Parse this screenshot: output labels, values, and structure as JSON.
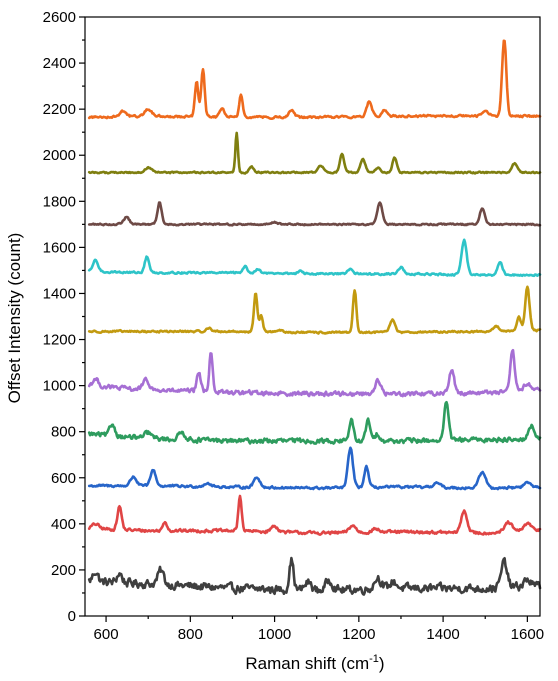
{
  "chart_data": {
    "type": "line",
    "xlabel": "Raman shift (cm",
    "xlabel_sup": "-1",
    "xlabel_end": ")",
    "ylabel": "Offset Intensity (count)",
    "xlim": [
      550,
      1630
    ],
    "ylim": [
      0,
      2600
    ],
    "x_ticks": [
      600,
      800,
      1000,
      1200,
      1400,
      1600
    ],
    "y_ticks": [
      0,
      200,
      400,
      600,
      800,
      1000,
      1200,
      1400,
      1600,
      1800,
      2000,
      2200,
      2400,
      2600
    ],
    "grid": false,
    "legend": "none",
    "series": [
      {
        "color": "#3f3f3f",
        "baseline": [
          [
            560,
            150
          ],
          [
            700,
            140
          ],
          [
            900,
            120
          ],
          [
            1100,
            110
          ],
          [
            1300,
            120
          ],
          [
            1500,
            120
          ],
          [
            1630,
            130
          ]
        ],
        "noise": 28,
        "peaks": [
          [
            575,
            45,
            6
          ],
          [
            632,
            40,
            6
          ],
          [
            730,
            60,
            7
          ],
          [
            1040,
            130,
            5
          ],
          [
            1080,
            35,
            8
          ],
          [
            1130,
            45,
            8
          ],
          [
            1245,
            50,
            8
          ],
          [
            1282,
            30,
            8
          ],
          [
            1545,
            110,
            7
          ],
          [
            1600,
            30,
            8
          ]
        ]
      },
      {
        "color": "#e04545",
        "baseline": [
          [
            560,
            380
          ],
          [
            700,
            370
          ],
          [
            900,
            370
          ],
          [
            1100,
            360
          ],
          [
            1300,
            365
          ],
          [
            1500,
            360
          ],
          [
            1630,
            375
          ]
        ],
        "noise": 10,
        "peaks": [
          [
            575,
            20,
            8
          ],
          [
            632,
            100,
            5
          ],
          [
            740,
            40,
            5
          ],
          [
            918,
            150,
            4
          ],
          [
            1000,
            25,
            8
          ],
          [
            1185,
            30,
            8
          ],
          [
            1240,
            15,
            8
          ],
          [
            1450,
            95,
            7
          ],
          [
            1555,
            40,
            8
          ],
          [
            1600,
            30,
            8
          ]
        ]
      },
      {
        "color": "#2765c9",
        "baseline": [
          [
            560,
            565
          ],
          [
            700,
            565
          ],
          [
            900,
            560
          ],
          [
            1100,
            555
          ],
          [
            1300,
            560
          ],
          [
            1500,
            555
          ],
          [
            1630,
            560
          ]
        ],
        "noise": 8,
        "peaks": [
          [
            665,
            40,
            7
          ],
          [
            712,
            70,
            6
          ],
          [
            840,
            15,
            8
          ],
          [
            958,
            45,
            7
          ],
          [
            1180,
            170,
            6
          ],
          [
            1218,
            90,
            5
          ],
          [
            1385,
            20,
            8
          ],
          [
            1493,
            70,
            8
          ],
          [
            1600,
            20,
            8
          ]
        ]
      },
      {
        "color": "#2e9c5e",
        "baseline": [
          [
            560,
            790
          ],
          [
            700,
            770
          ],
          [
            900,
            760
          ],
          [
            1100,
            760
          ],
          [
            1300,
            760
          ],
          [
            1500,
            765
          ],
          [
            1630,
            770
          ]
        ],
        "noise": 16,
        "peaks": [
          [
            615,
            50,
            6
          ],
          [
            700,
            25,
            8
          ],
          [
            780,
            30,
            8
          ],
          [
            1182,
            90,
            5
          ],
          [
            1222,
            90,
            5
          ],
          [
            1245,
            30,
            6
          ],
          [
            1408,
            170,
            5
          ],
          [
            1610,
            55,
            6
          ]
        ]
      },
      {
        "color": "#a66fd4",
        "baseline": [
          [
            560,
            1000
          ],
          [
            700,
            980
          ],
          [
            900,
            970
          ],
          [
            1100,
            965
          ],
          [
            1300,
            965
          ],
          [
            1500,
            970
          ],
          [
            1630,
            980
          ]
        ],
        "noise": 15,
        "peaks": [
          [
            575,
            30,
            7
          ],
          [
            695,
            40,
            8
          ],
          [
            820,
            80,
            5
          ],
          [
            849,
            175,
            4
          ],
          [
            1245,
            55,
            7
          ],
          [
            1420,
            100,
            6
          ],
          [
            1565,
            175,
            5
          ],
          [
            1600,
            30,
            8
          ]
        ]
      },
      {
        "color": "#c29a10",
        "baseline": [
          [
            560,
            1235
          ],
          [
            700,
            1235
          ],
          [
            900,
            1235
          ],
          [
            1100,
            1230
          ],
          [
            1300,
            1232
          ],
          [
            1500,
            1235
          ],
          [
            1630,
            1240
          ]
        ],
        "noise": 6,
        "peaks": [
          [
            845,
            15,
            6
          ],
          [
            955,
            165,
            4
          ],
          [
            968,
            70,
            4
          ],
          [
            1010,
            10,
            6
          ],
          [
            1190,
            185,
            4
          ],
          [
            1280,
            55,
            6
          ],
          [
            1525,
            20,
            8
          ],
          [
            1580,
            60,
            5
          ],
          [
            1600,
            190,
            5
          ]
        ]
      },
      {
        "color": "#2ec4c8",
        "baseline": [
          [
            560,
            1495
          ],
          [
            700,
            1490
          ],
          [
            900,
            1490
          ],
          [
            1100,
            1485
          ],
          [
            1300,
            1485
          ],
          [
            1500,
            1480
          ],
          [
            1630,
            1480
          ]
        ],
        "noise": 6,
        "peaks": [
          [
            575,
            50,
            6
          ],
          [
            697,
            70,
            5
          ],
          [
            930,
            30,
            5
          ],
          [
            960,
            20,
            5
          ],
          [
            1060,
            10,
            6
          ],
          [
            1180,
            20,
            6
          ],
          [
            1300,
            30,
            6
          ],
          [
            1450,
            150,
            6
          ],
          [
            1535,
            55,
            6
          ]
        ]
      },
      {
        "color": "#6e4a46",
        "baseline": [
          [
            560,
            1700
          ],
          [
            700,
            1700
          ],
          [
            900,
            1700
          ],
          [
            1100,
            1700
          ],
          [
            1300,
            1700
          ],
          [
            1500,
            1700
          ],
          [
            1630,
            1700
          ]
        ],
        "noise": 5,
        "peaks": [
          [
            648,
            30,
            7
          ],
          [
            727,
            95,
            5
          ],
          [
            1000,
            10,
            8
          ],
          [
            1250,
            95,
            6
          ],
          [
            1493,
            70,
            6
          ]
        ]
      },
      {
        "color": "#7f7f10",
        "baseline": [
          [
            560,
            1925
          ],
          [
            700,
            1925
          ],
          [
            900,
            1925
          ],
          [
            1100,
            1925
          ],
          [
            1300,
            1925
          ],
          [
            1500,
            1925
          ],
          [
            1630,
            1925
          ]
        ],
        "noise": 5,
        "peaks": [
          [
            700,
            20,
            8
          ],
          [
            910,
            170,
            3
          ],
          [
            945,
            25,
            5
          ],
          [
            1110,
            30,
            6
          ],
          [
            1160,
            80,
            5
          ],
          [
            1210,
            55,
            6
          ],
          [
            1245,
            20,
            6
          ],
          [
            1285,
            65,
            5
          ],
          [
            1570,
            40,
            6
          ]
        ]
      },
      {
        "color": "#ee6a1d",
        "baseline": [
          [
            560,
            2165
          ],
          [
            700,
            2170
          ],
          [
            900,
            2165
          ],
          [
            1100,
            2165
          ],
          [
            1300,
            2170
          ],
          [
            1500,
            2170
          ],
          [
            1630,
            2170
          ]
        ],
        "noise": 7,
        "peaks": [
          [
            640,
            25,
            7
          ],
          [
            700,
            30,
            8
          ],
          [
            815,
            150,
            4
          ],
          [
            830,
            210,
            4
          ],
          [
            875,
            40,
            5
          ],
          [
            920,
            95,
            4
          ],
          [
            1040,
            30,
            6
          ],
          [
            1225,
            65,
            6
          ],
          [
            1260,
            30,
            6
          ],
          [
            1545,
            330,
            5
          ],
          [
            1500,
            20,
            8
          ]
        ]
      }
    ]
  }
}
